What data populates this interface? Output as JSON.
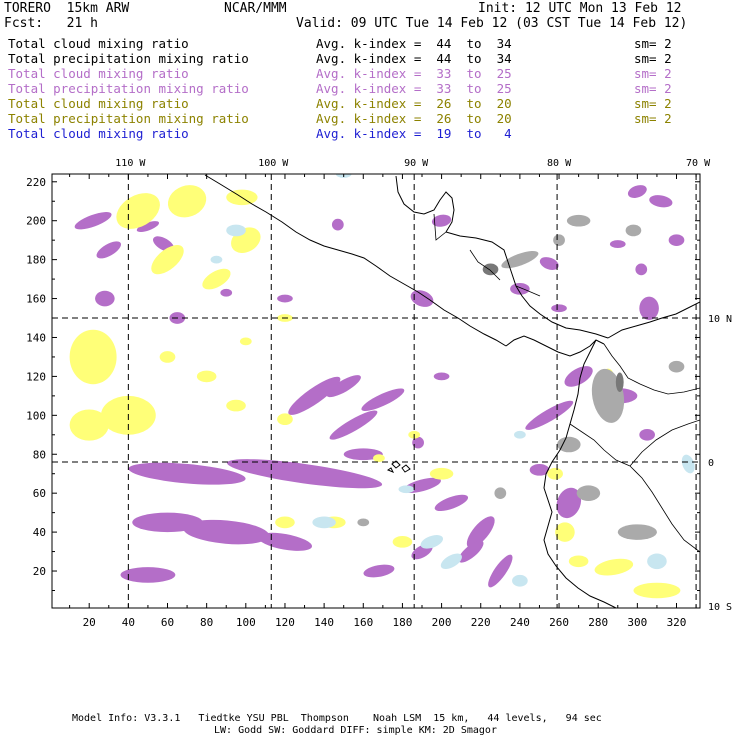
{
  "header": {
    "model": "TORERO  15km ARW",
    "org": "NCAR/MMM",
    "init": "Init: 12 UTC Mon 13 Feb 12",
    "fcst": "Fcst:   21 h",
    "valid": "Valid: 09 UTC Tue 14 Feb 12 (03 CST Tue 14 Feb 12)"
  },
  "legend": [
    {
      "field": "Total cloud mixing ratio",
      "kindex": "Avg. k-index =  44  to  34",
      "sm": "sm= 2",
      "color": "#000000"
    },
    {
      "field": "Total precipitation mixing ratio",
      "kindex": "Avg. k-index =  44  to  34",
      "sm": "sm= 2",
      "color": "#000000"
    },
    {
      "field": "Total cloud mixing ratio",
      "kindex": "Avg. k-index =  33  to  25",
      "sm": "sm= 2",
      "color": "#b46ec8"
    },
    {
      "field": "Total precipitation mixing ratio",
      "kindex": "Avg. k-index =  33  to  25",
      "sm": "sm= 2",
      "color": "#b46ec8"
    },
    {
      "field": "Total cloud mixing ratio",
      "kindex": "Avg. k-index =  26  to  20",
      "sm": "sm= 2",
      "color": "#8c8200"
    },
    {
      "field": "Total precipitation mixing ratio",
      "kindex": "Avg. k-index =  26  to  20",
      "sm": "sm= 2",
      "color": "#8c8200"
    },
    {
      "field": "Total cloud mixing ratio",
      "kindex": "Avg. k-index =  19  to   4",
      "sm": "",
      "color": "#1e1ed2"
    }
  ],
  "map": {
    "lon_labels": [
      {
        "text": "110 W",
        "x_grid": 40
      },
      {
        "text": "100 W",
        "x_grid": 113
      },
      {
        "text": "90 W",
        "x_grid": 186
      },
      {
        "text": "80 W",
        "x_grid": 259
      },
      {
        "text": "70 W",
        "x_grid": 330
      }
    ],
    "lat_labels": [
      {
        "text": "10 N",
        "y_grid": 150
      },
      {
        "text": "0",
        "y_grid": 76
      },
      {
        "text": "10 S",
        "y_grid": 2
      }
    ],
    "x_ticks": [
      "20",
      "40",
      "60",
      "80",
      "100",
      "120",
      "140",
      "160",
      "180",
      "200",
      "220",
      "240",
      "260",
      "280",
      "300",
      "320"
    ],
    "y_ticks": [
      "20",
      "40",
      "60",
      "80",
      "100",
      "120",
      "140",
      "160",
      "180",
      "200",
      "220"
    ],
    "grid_x_range": [
      1,
      332
    ],
    "grid_y_range": [
      1,
      224
    ],
    "colors": {
      "purple": "#b46ec8",
      "yellow": "#ffff78",
      "dark_yellow": "#f0e650",
      "gray": "#aaaaaa",
      "dark_gray": "#787878",
      "light_blue": "#c8e6f0"
    }
  },
  "footer": {
    "line1": "Model Info: V3.3.1   Tiedtke YSU PBL  Thompson    Noah LSM  15 km,   44 levels,   94 sec",
    "line2": "LW: Godd SW: Goddard DIFF: simple KM: 2D Smagor"
  }
}
